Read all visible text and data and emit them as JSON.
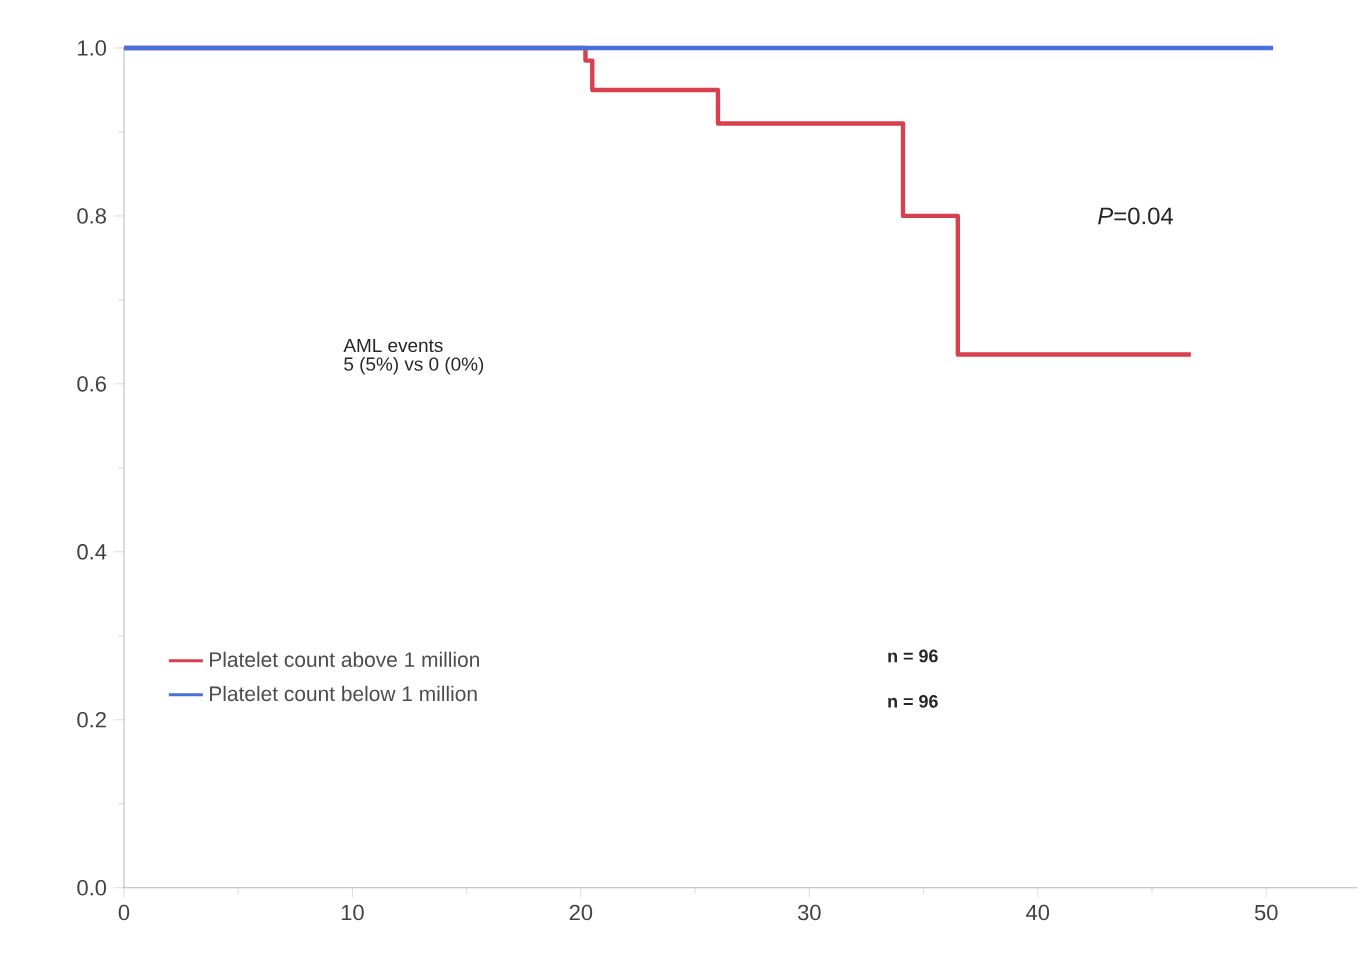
{
  "chart_data": {
    "type": "step",
    "series": [
      {
        "name": "Platelet count above 1 million",
        "color": "#d9404f",
        "x": [
          0,
          20.2,
          20.5,
          26,
          34.1,
          36.5,
          46.7
        ],
        "values": [
          1,
          0.985,
          0.95,
          0.91,
          0.8,
          0.635,
          0.635
        ]
      },
      {
        "name": "Platelet count below 1 million",
        "color": "#4a6fd8",
        "x": [
          0,
          50.3
        ],
        "values": [
          1,
          1
        ]
      }
    ],
    "xlim": [
      0,
      54
    ],
    "ylim": [
      0,
      1.0
    ],
    "xticks": [
      0,
      10,
      20,
      30,
      40,
      50
    ],
    "yticks": [
      {
        "value": 0,
        "label": "0.0"
      },
      {
        "value": 0.2,
        "label": "0.2"
      },
      {
        "value": 0.4,
        "label": "0.4"
      },
      {
        "value": 0.6,
        "label": "0.6"
      },
      {
        "value": 0.8,
        "label": "0.8"
      },
      {
        "value": 1.0,
        "label": "1.0"
      }
    ],
    "grid": false,
    "legend": "left",
    "line_style": "solid",
    "marker": "none",
    "annotations": [
      "*P*=0.04",
      "AML events",
      "5 (5%)  vs 0 (0%)",
      "**n = 96**",
      "**n = 96**"
    ]
  }
}
